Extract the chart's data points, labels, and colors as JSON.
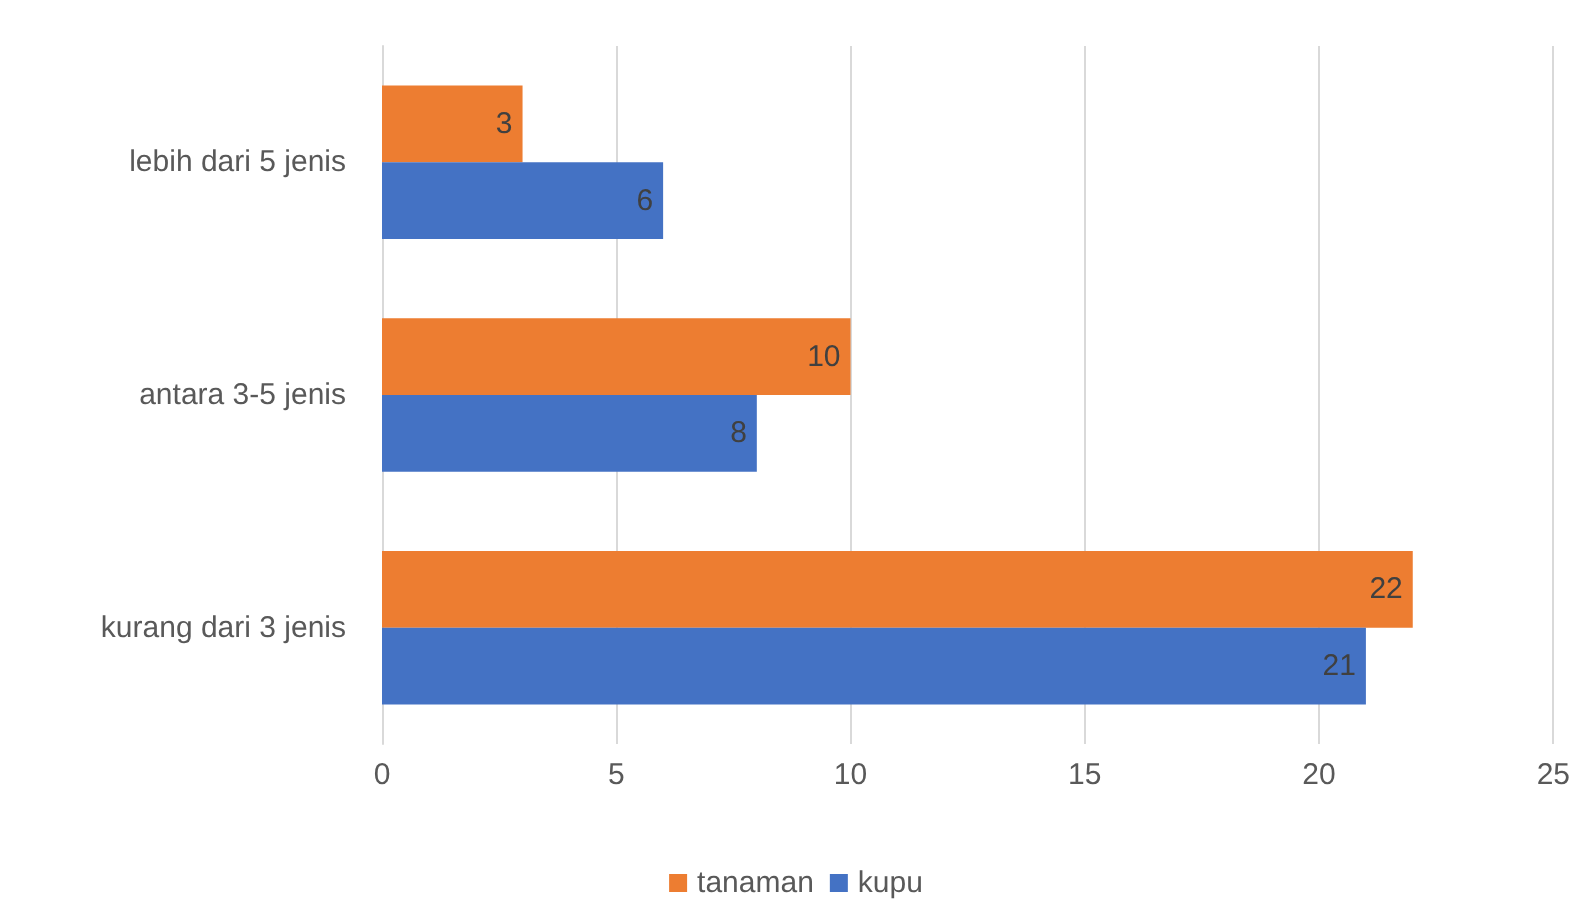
{
  "chart_data": {
    "type": "bar",
    "orientation": "horizontal",
    "categories": [
      "lebih dari 5 jenis",
      "antara 3-5 jenis",
      "kurang dari 3 jenis"
    ],
    "series": [
      {
        "name": "tanaman",
        "color": "#ed7d31",
        "values": [
          3,
          10,
          22
        ]
      },
      {
        "name": "kupu",
        "color": "#4472c4",
        "values": [
          6,
          8,
          21
        ]
      }
    ],
    "xlim": [
      0,
      25
    ],
    "xticks": [
      0,
      5,
      10,
      15,
      20,
      25
    ],
    "grid": "x",
    "legend": "bottom",
    "data_labels": true
  }
}
